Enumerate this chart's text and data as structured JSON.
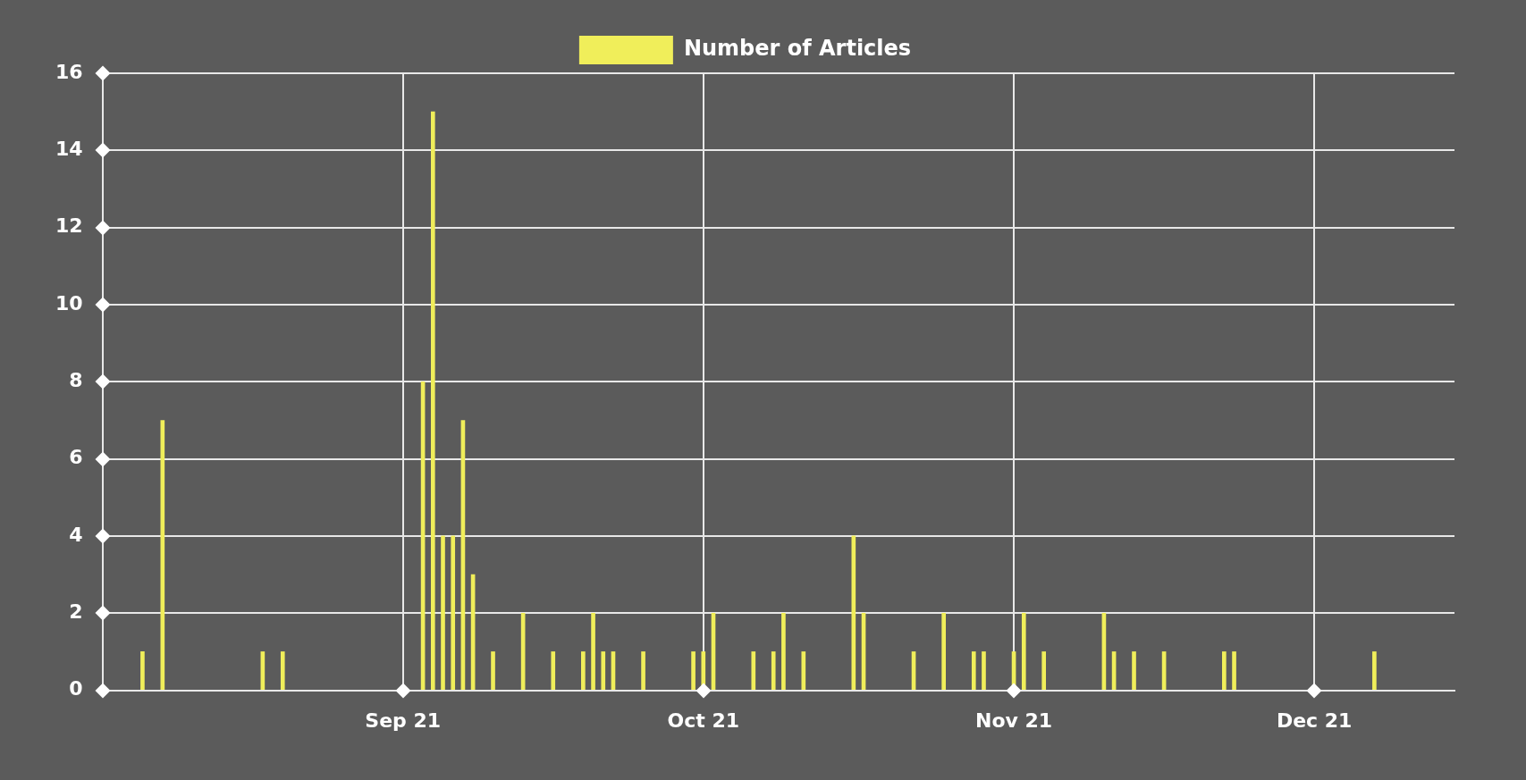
{
  "chart_data": {
    "type": "bar",
    "x": [
      "2021-08-06",
      "2021-08-08",
      "2021-08-18",
      "2021-08-20",
      "2021-09-03",
      "2021-09-04",
      "2021-09-05",
      "2021-09-06",
      "2021-09-07",
      "2021-09-08",
      "2021-09-10",
      "2021-09-13",
      "2021-09-16",
      "2021-09-19",
      "2021-09-20",
      "2021-09-21",
      "2021-09-22",
      "2021-09-25",
      "2021-09-30",
      "2021-10-01",
      "2021-10-02",
      "2021-10-06",
      "2021-10-08",
      "2021-10-09",
      "2021-10-11",
      "2021-10-16",
      "2021-10-17",
      "2021-10-22",
      "2021-10-25",
      "2021-10-28",
      "2021-10-29",
      "2021-11-01",
      "2021-11-02",
      "2021-11-04",
      "2021-11-10",
      "2021-11-11",
      "2021-11-13",
      "2021-11-16",
      "2021-11-22",
      "2021-11-23",
      "2021-12-07"
    ],
    "series": [
      {
        "name": "Number of Articles",
        "color": "#f0ee5a",
        "values": [
          1,
          7,
          1,
          1,
          8,
          15,
          4,
          4,
          7,
          3,
          1,
          2,
          1,
          1,
          2,
          1,
          1,
          1,
          1,
          1,
          2,
          1,
          1,
          2,
          1,
          4,
          2,
          1,
          2,
          1,
          1,
          1,
          2,
          1,
          2,
          1,
          1,
          1,
          1,
          1,
          1
        ]
      }
    ],
    "xlim": [
      "2021-08-02",
      "2021-12-15"
    ],
    "xticks": [
      {
        "value": "2021-09-01",
        "label": "Sep 21"
      },
      {
        "value": "2021-10-01",
        "label": "Oct 21"
      },
      {
        "value": "2021-11-01",
        "label": "Nov 21"
      },
      {
        "value": "2021-12-01",
        "label": "Dec 21"
      }
    ],
    "ylim": [
      0,
      16
    ],
    "yticks": [
      0,
      2,
      4,
      6,
      8,
      10,
      12,
      14,
      16
    ],
    "grid": true,
    "legend": "top"
  }
}
